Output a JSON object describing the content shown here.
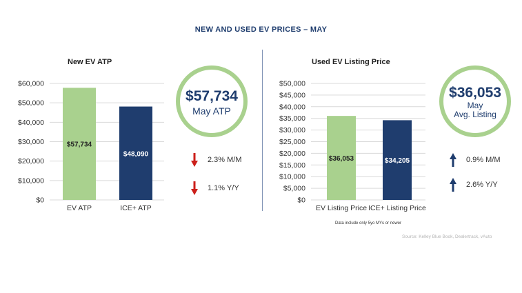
{
  "title": "NEW AND USED EV PRICES – MAY",
  "colors": {
    "green": "#a9d18e",
    "navy": "#1f3d6e",
    "down": "#cc1f1a",
    "up": "#1f3d6e"
  },
  "chart_data": [
    {
      "type": "bar",
      "title": "New EV ATP",
      "categories": [
        "EV ATP",
        "ICE+ ATP"
      ],
      "values": [
        57734,
        48090
      ],
      "value_labels": [
        "$57,734",
        "$48,090"
      ],
      "bar_colors": [
        "#a9d18e",
        "#1f3d6e"
      ],
      "ylim": [
        0,
        60000
      ],
      "yticks": [
        0,
        10000,
        20000,
        30000,
        40000,
        50000,
        60000
      ],
      "ytick_labels": [
        "$0",
        "$10,000",
        "$20,000",
        "$30,000",
        "$40,000",
        "$50,000",
        "$60,000"
      ],
      "grid": true
    },
    {
      "type": "bar",
      "title": "Used EV Listing Price",
      "categories": [
        "EV Listing Price",
        "ICE+ Listing Price"
      ],
      "values": [
        36053,
        34205
      ],
      "value_labels": [
        "$36,053",
        "$34,205"
      ],
      "bar_colors": [
        "#a9d18e",
        "#1f3d6e"
      ],
      "ylim": [
        0,
        50000
      ],
      "yticks": [
        0,
        5000,
        10000,
        15000,
        20000,
        25000,
        30000,
        35000,
        40000,
        45000,
        50000
      ],
      "ytick_labels": [
        "$0",
        "$5,000",
        "$10,000",
        "$15,000",
        "$20,000",
        "$25,000",
        "$30,000",
        "$35,000",
        "$40,000",
        "$45,000",
        "$50,000"
      ],
      "grid": true
    }
  ],
  "new_panel": {
    "circle_value": "$57,734",
    "circle_label": "May ATP",
    "changes": [
      {
        "text": "2.3% M/M",
        "direction": "down"
      },
      {
        "text": "1.1% Y/Y",
        "direction": "down"
      }
    ]
  },
  "used_panel": {
    "circle_value": "$36,053",
    "circle_label_1": "May",
    "circle_label_2": "Avg. Listing",
    "changes": [
      {
        "text": "0.9% M/M",
        "direction": "up"
      },
      {
        "text": "2.6% Y/Y",
        "direction": "up"
      }
    ],
    "footnote": "Data include only 5yo MYs or newer"
  },
  "source": "Source: Kelley Blue Book, Dealertrack, vAuto"
}
